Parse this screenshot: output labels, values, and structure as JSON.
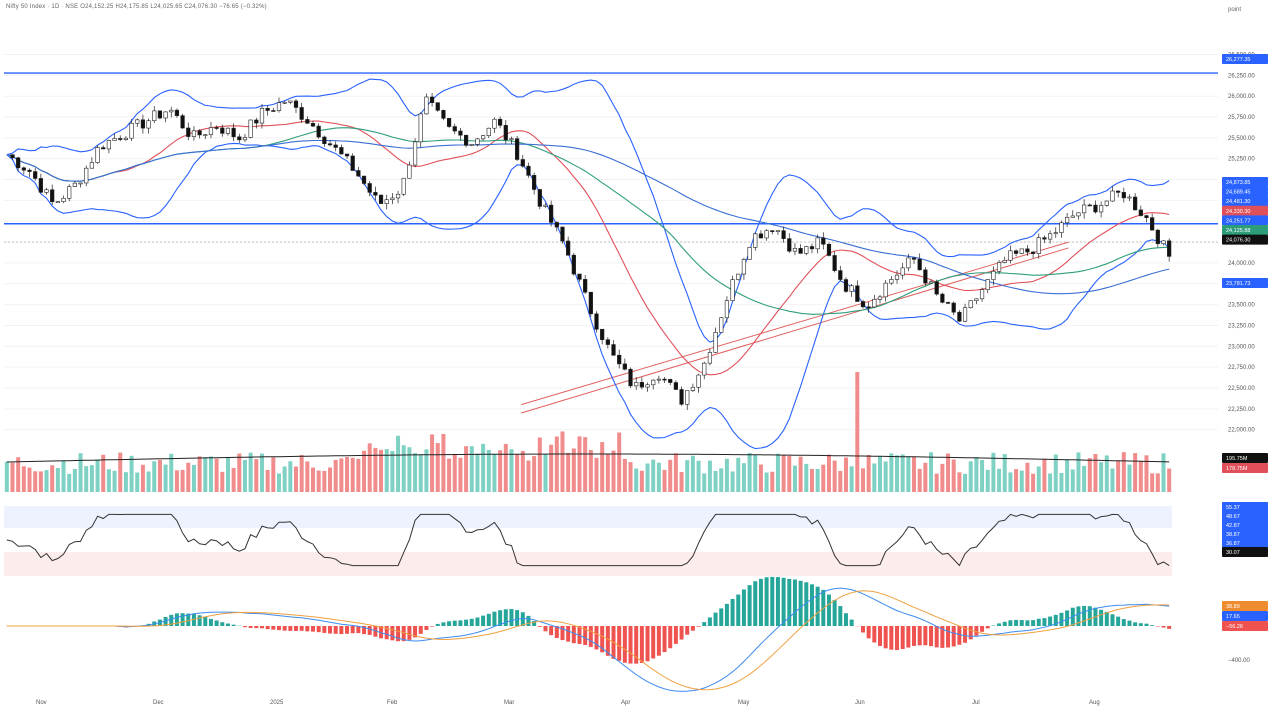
{
  "header": {
    "symbol_line": "Nifty 50 Index · 1D · NSE  O24,152.25  H24,175.85  L24,025.65  C24,076.30  −76.65 (−0.32%)",
    "scale_unit": "point"
  },
  "colors": {
    "up": "#26a69a",
    "down": "#111111",
    "vol_up": "#7fd1c4",
    "vol_down": "#f08c8c",
    "bollinger": "#2962ff",
    "ema_red": "#e0505a",
    "ema_green": "#2e9e7a",
    "sma_blue": "#3b6fd4",
    "hline": "#2962ff",
    "trendline": "#e06060",
    "rsi_line": "#333333",
    "macd_line": "#3d8bf0",
    "signal_line": "#f0a040",
    "hist_pos": "#26a69a",
    "hist_neg": "#ef5350"
  },
  "price_axis": {
    "ticks": [
      "26,500.00",
      "26,250.00",
      "26,000.00",
      "25,750.00",
      "25,500.00",
      "25,250.00",
      "25,000.00",
      "24,750.00",
      "24,500.00",
      "24,250.00",
      "24,000.00",
      "23,750.00",
      "23,500.00",
      "23,250.00",
      "23,000.00",
      "22,750.00",
      "22,500.00",
      "22,250.00",
      "22,000.00"
    ]
  },
  "time_axis": {
    "labels": [
      "Nov",
      "Dec",
      "2025",
      "Feb",
      "Mar",
      "Apr",
      "May",
      "Jun",
      "Jul",
      "Aug"
    ]
  },
  "price_tags": [
    {
      "text": "26,277.35",
      "color": "#2962ff"
    },
    {
      "text": "24,873.85",
      "color": "#2962ff"
    },
    {
      "text": "24,689.45",
      "color": "#2962ff"
    },
    {
      "text": "24,481.30",
      "color": "#2962ff"
    },
    {
      "text": "24,330.30",
      "color": "#e0505a"
    },
    {
      "text": "24,251.77",
      "color": "#2962ff"
    },
    {
      "text": "24,125.88",
      "color": "#2e9e7a"
    },
    {
      "text": "24,076.30",
      "color": "#111111"
    },
    {
      "text": "23,781.73",
      "color": "#2962ff"
    }
  ],
  "volume_tags": [
    {
      "text": "195.75M",
      "color": "#111111"
    },
    {
      "text": "178.75M",
      "color": "#e0505a"
    }
  ],
  "rsi_tags": [
    {
      "text": "55.37",
      "color": "#2962ff"
    },
    {
      "text": "48.67",
      "color": "#2962ff"
    },
    {
      "text": "42.87",
      "color": "#2962ff"
    },
    {
      "text": "38.87",
      "color": "#2962ff"
    },
    {
      "text": "36.87",
      "color": "#2962ff"
    },
    {
      "text": "30.07",
      "color": "#111111"
    }
  ],
  "macd_tags": [
    {
      "text": "38.89",
      "color": "#f08c30"
    },
    {
      "text": "17.65",
      "color": "#2962ff"
    },
    {
      "text": "−56.26",
      "color": "#ef5350"
    }
  ],
  "macd_axis_label": "−400.00",
  "chart_data": {
    "type": "candlestick",
    "title": "",
    "ylim": [
      21900,
      26650
    ],
    "horizontal_lines": [
      26277,
      24470
    ],
    "dashed_line": 24250,
    "trendlines": [
      {
        "from": [
          "2025-04-01",
          22300
        ],
        "to": [
          "2025-08-31",
          24250
        ]
      },
      {
        "from": [
          "2025-04-01",
          22200
        ],
        "to": [
          "2025-08-31",
          24180
        ]
      }
    ],
    "closes_weekly": [
      {
        "date": "2024-10-28",
        "close": 25300
      },
      {
        "date": "2024-11-04",
        "close": 25100
      },
      {
        "date": "2024-11-11",
        "close": 24700
      },
      {
        "date": "2024-11-18",
        "close": 24950
      },
      {
        "date": "2024-11-25",
        "close": 25400
      },
      {
        "date": "2024-12-02",
        "close": 25550
      },
      {
        "date": "2024-12-09",
        "close": 25700
      },
      {
        "date": "2024-12-16",
        "close": 25850
      },
      {
        "date": "2024-12-23",
        "close": 25500
      },
      {
        "date": "2024-12-30",
        "close": 25650
      },
      {
        "date": "2025-01-06",
        "close": 25500
      },
      {
        "date": "2025-01-13",
        "close": 25800
      },
      {
        "date": "2025-01-20",
        "close": 25950
      },
      {
        "date": "2025-01-27",
        "close": 25700
      },
      {
        "date": "2025-02-03",
        "close": 25400
      },
      {
        "date": "2025-02-10",
        "close": 25100
      },
      {
        "date": "2025-02-17",
        "close": 24700
      },
      {
        "date": "2025-02-24",
        "close": 24900
      },
      {
        "date": "2025-03-03",
        "close": 25950
      },
      {
        "date": "2025-03-10",
        "close": 25600
      },
      {
        "date": "2025-03-17",
        "close": 25450
      },
      {
        "date": "2025-03-24",
        "close": 25700
      },
      {
        "date": "2025-03-31",
        "close": 25300
      },
      {
        "date": "2025-04-07",
        "close": 24700
      },
      {
        "date": "2025-04-14",
        "close": 24200
      },
      {
        "date": "2025-04-21",
        "close": 23500
      },
      {
        "date": "2025-04-28",
        "close": 22900
      },
      {
        "date": "2025-05-05",
        "close": 22500
      },
      {
        "date": "2025-05-12",
        "close": 22700
      },
      {
        "date": "2025-05-19",
        "close": 22350
      },
      {
        "date": "2025-05-26",
        "close": 22800
      },
      {
        "date": "2025-06-02",
        "close": 23600
      },
      {
        "date": "2025-06-09",
        "close": 24300
      },
      {
        "date": "2025-06-16",
        "close": 24450
      },
      {
        "date": "2025-06-23",
        "close": 24100
      },
      {
        "date": "2025-06-30",
        "close": 24250
      },
      {
        "date": "2025-07-07",
        "close": 23750
      },
      {
        "date": "2025-07-14",
        "close": 23500
      },
      {
        "date": "2025-07-21",
        "close": 23800
      },
      {
        "date": "2025-07-28",
        "close": 24050
      },
      {
        "date": "2025-08-04",
        "close": 23600
      },
      {
        "date": "2025-08-11",
        "close": 23300
      },
      {
        "date": "2025-08-18",
        "close": 23700
      },
      {
        "date": "2025-08-25",
        "close": 24050
      },
      {
        "date": "2025-09-01",
        "close": 24150
      },
      {
        "date": "2025-09-08",
        "close": 24350
      },
      {
        "date": "2025-09-15",
        "close": 24600
      },
      {
        "date": "2025-09-22",
        "close": 24700
      },
      {
        "date": "2025-09-29",
        "close": 24850
      },
      {
        "date": "2025-10-06",
        "close": 24550
      },
      {
        "date": "2025-10-13",
        "close": 24076
      }
    ],
    "volume_avg": 195.75,
    "indicators": [
      "Bollinger Bands",
      "EMA 20",
      "EMA 50",
      "SMA 100",
      "RSI",
      "MACD"
    ]
  }
}
